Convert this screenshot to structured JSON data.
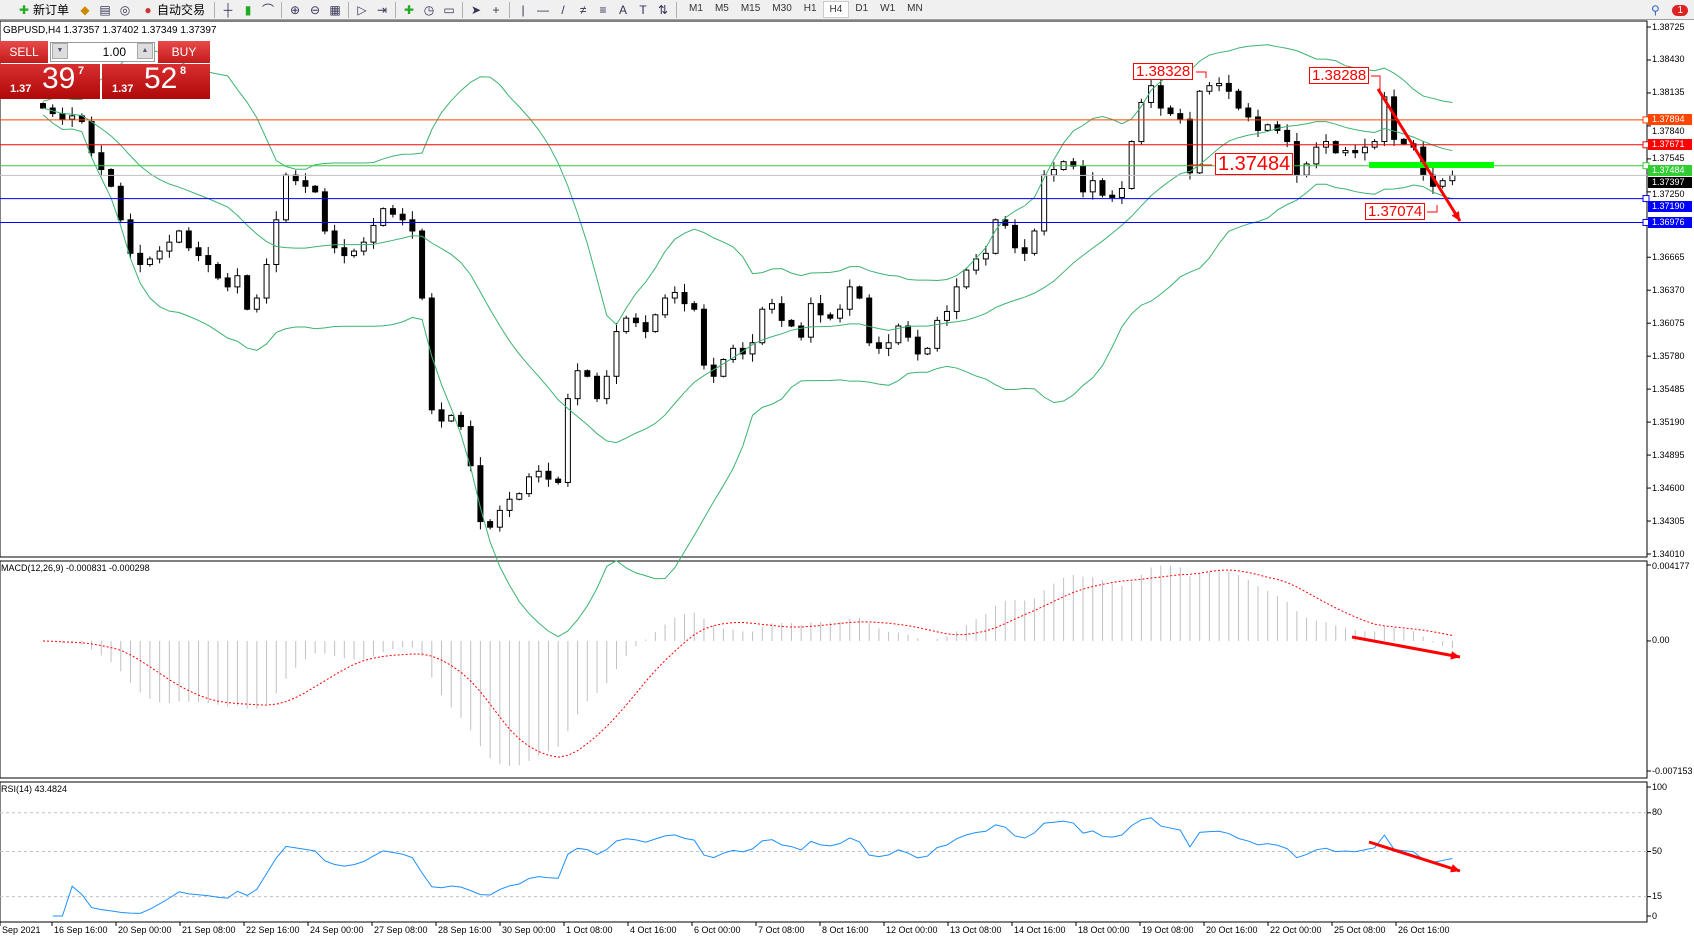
{
  "toolbar": {
    "new_order": "新订单",
    "auto_trading": "自动交易",
    "timeframes": [
      "M1",
      "M5",
      "M15",
      "M30",
      "H1",
      "H4",
      "D1",
      "W1",
      "MN"
    ],
    "active_timeframe": "H4",
    "notification_count": "1"
  },
  "header": "GBPUSD,H4  1.37357 1.37402 1.37349 1.37397",
  "trade_panel": {
    "sell_label": "SELL",
    "buy_label": "BUY",
    "lot": "1.00",
    "sell_price": {
      "prefix": "1.37",
      "big": "39",
      "pip": "7"
    },
    "buy_price": {
      "prefix": "1.37",
      "big": "52",
      "pip": "8"
    }
  },
  "chart_data": {
    "type": "candlestick",
    "symbol": "GBPUSD",
    "timeframe": "H4",
    "ylim": [
      1.3401,
      1.38725
    ],
    "y_ticks": [
      "1.38725",
      "1.38430",
      "1.38135",
      "1.37840",
      "1.37545",
      "1.37250",
      "1.36665",
      "1.36370",
      "1.36075",
      "1.35780",
      "1.35485",
      "1.35190",
      "1.34895",
      "1.34600",
      "1.34305",
      "1.34010"
    ],
    "closes": [
      1.38,
      1.3795,
      1.379,
      1.3793,
      1.3788,
      1.376,
      1.3745,
      1.373,
      1.37,
      1.367,
      1.366,
      1.3665,
      1.3672,
      1.368,
      1.369,
      1.3675,
      1.3668,
      1.366,
      1.3648,
      1.364,
      1.365,
      1.362,
      1.363,
      1.366,
      1.37,
      1.374,
      1.3735,
      1.373,
      1.3725,
      1.369,
      1.3675,
      1.3668,
      1.3672,
      1.368,
      1.3695,
      1.371,
      1.3705,
      1.37,
      1.369,
      1.363,
      1.353,
      1.352,
      1.3525,
      1.3515,
      1.348,
      1.343,
      1.3425,
      1.344,
      1.345,
      1.3455,
      1.347,
      1.3475,
      1.3468,
      1.3465,
      1.354,
      1.3565,
      1.356,
      1.354,
      1.356,
      1.36,
      1.3612,
      1.3608,
      1.36,
      1.3615,
      1.363,
      1.3635,
      1.3625,
      1.362,
      1.357,
      1.356,
      1.3575,
      1.3585,
      1.358,
      1.359,
      1.362,
      1.3625,
      1.361,
      1.3605,
      1.3595,
      1.3625,
      1.3615,
      1.3612,
      1.362,
      1.364,
      1.363,
      1.359,
      1.3585,
      1.359,
      1.3605,
      1.3595,
      1.358,
      1.3585,
      1.361,
      1.3618,
      1.364,
      1.3655,
      1.3665,
      1.367,
      1.37,
      1.3695,
      1.3675,
      1.367,
      1.369,
      1.374,
      1.3745,
      1.3752,
      1.3748,
      1.3725,
      1.3735,
      1.3722,
      1.372,
      1.3728,
      1.377,
      1.3805,
      1.382,
      1.38,
      1.3795,
      1.379,
      1.3742,
      1.3815,
      1.382,
      1.3822,
      1.3815,
      1.38,
      1.3792,
      1.378,
      1.3785,
      1.378,
      1.377,
      1.374,
      1.375,
      1.3765,
      1.377,
      1.376,
      1.3762,
      1.376,
      1.3765,
      1.377,
      1.381,
      1.3772,
      1.3768,
      1.3765,
      1.374,
      1.373,
      1.3735,
      1.37397
    ],
    "levels": [
      {
        "price": "1.37894",
        "color": "#ff4500"
      },
      {
        "price": "1.37671",
        "color": "#ff0000"
      },
      {
        "price": "1.37484",
        "color": "#32cd32"
      },
      {
        "price": "1.37397",
        "color": "#000000",
        "line": "#c0c0c0"
      },
      {
        "price": "1.37190",
        "color": "#0000ff"
      },
      {
        "price": "1.36976",
        "color": "#0000ff"
      }
    ],
    "annotations": [
      "1.38328",
      "1.38288",
      "1.37484",
      "1.37074"
    ],
    "time_labels": [
      "Sep 2021",
      "16 Sep 16:00",
      "20 Sep 00:00",
      "21 Sep 08:00",
      "22 Sep 16:00",
      "24 Sep 00:00",
      "27 Sep 08:00",
      "28 Sep 16:00",
      "30 Sep 00:00",
      "1 Oct 08:00",
      "4 Oct 16:00",
      "6 Oct 00:00",
      "7 Oct 08:00",
      "8 Oct 16:00",
      "12 Oct 00:00",
      "13 Oct 08:00",
      "14 Oct 16:00",
      "18 Oct 00:00",
      "19 Oct 08:00",
      "20 Oct 16:00",
      "22 Oct 00:00",
      "25 Oct 08:00",
      "26 Oct 16:00"
    ],
    "bands_color": "#3cb371",
    "macd": {
      "header": "MACD(12,26,9) -0.000831 -0.000298",
      "axis": [
        "0.004177",
        "0.00",
        "-0.007153"
      ],
      "ylim": [
        -0.007153,
        0.004177
      ]
    },
    "rsi": {
      "header": "RSI(14) 43.4824",
      "axis": [
        "100",
        "80",
        "50",
        "15",
        "0"
      ],
      "levels": [
        80,
        50,
        15
      ]
    }
  }
}
